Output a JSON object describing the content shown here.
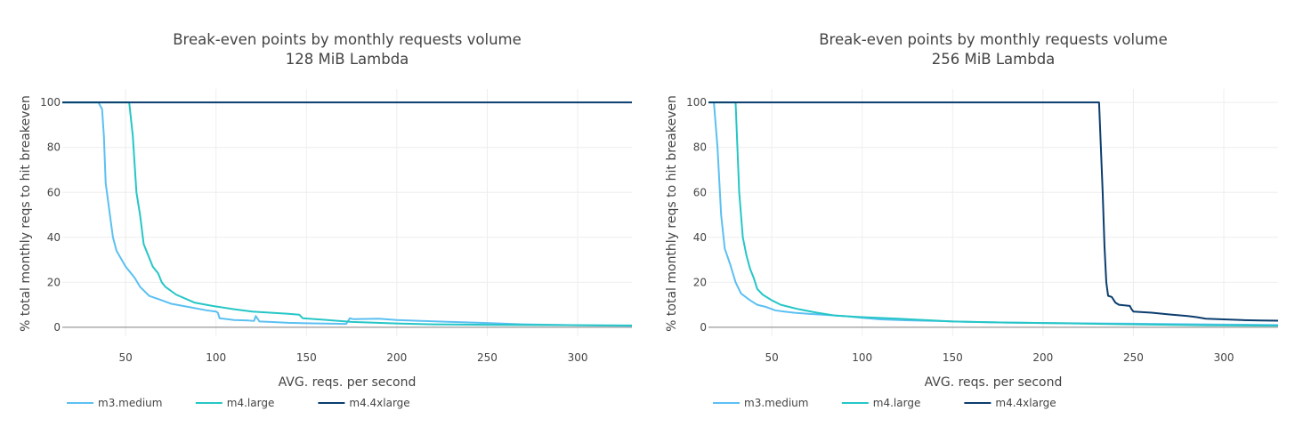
{
  "colors": {
    "m3_medium": "#5bc0f2",
    "m4_large": "#26c6c6",
    "m4_4xlarge": "#0b3d6e",
    "zero_line": "#999999"
  },
  "chart_data": [
    {
      "type": "line",
      "title": "Break-even points by monthly requests volume",
      "subtitle": "128 MiB Lambda",
      "xlabel": "AVG. reqs. per second",
      "ylabel": "% total monthly reqs to hit breakeven",
      "xlim": [
        15,
        330
      ],
      "ylim": [
        -4,
        106
      ],
      "x_ticks": [
        50,
        100,
        150,
        200,
        250,
        300
      ],
      "x_tick_labels": [
        "50",
        "100",
        "150",
        "200",
        "250",
        "300"
      ],
      "y_ticks": [
        0,
        20,
        40,
        60,
        80,
        100
      ],
      "y_tick_labels": [
        "0",
        "20",
        "40",
        "60",
        "80",
        "100"
      ],
      "grid": true,
      "legend_position": "bottom-left",
      "series": [
        {
          "name": "m3.medium",
          "color": "#5bc0f2",
          "points": [
            [
              15,
              100
            ],
            [
              35,
              100
            ],
            [
              37,
              97
            ],
            [
              38,
              85
            ],
            [
              39,
              64
            ],
            [
              41,
              52
            ],
            [
              43,
              40
            ],
            [
              45,
              34
            ],
            [
              50,
              27
            ],
            [
              55,
              22
            ],
            [
              58,
              18
            ],
            [
              63,
              14
            ],
            [
              70,
              12
            ],
            [
              75,
              10.5
            ],
            [
              85,
              9
            ],
            [
              95,
              7.5
            ],
            [
              100,
              7
            ],
            [
              101,
              6.5
            ],
            [
              102,
              4
            ],
            [
              110,
              3.2
            ],
            [
              118,
              3
            ],
            [
              121,
              2.8
            ],
            [
              122,
              5
            ],
            [
              124,
              2.6
            ],
            [
              130,
              2.4
            ],
            [
              140,
              2
            ],
            [
              150,
              1.8
            ],
            [
              172,
              1.5
            ],
            [
              174,
              4
            ],
            [
              176,
              3.6
            ],
            [
              190,
              3.8
            ],
            [
              200,
              3.2
            ],
            [
              210,
              2.9
            ],
            [
              230,
              2.4
            ],
            [
              250,
              1.9
            ],
            [
              270,
              1.3
            ],
            [
              300,
              0.9
            ],
            [
              330,
              0.6
            ]
          ]
        },
        {
          "name": "m4.large",
          "color": "#26c6c6",
          "points": [
            [
              15,
              100
            ],
            [
              52,
              100
            ],
            [
              54,
              85
            ],
            [
              56,
              60
            ],
            [
              58,
              50
            ],
            [
              60,
              37
            ],
            [
              63,
              31
            ],
            [
              65,
              27
            ],
            [
              68,
              24
            ],
            [
              70,
              20
            ],
            [
              72,
              18
            ],
            [
              78,
              14.5
            ],
            [
              88,
              11
            ],
            [
              98,
              9.5
            ],
            [
              110,
              8
            ],
            [
              120,
              7
            ],
            [
              140,
              6
            ],
            [
              146,
              5.6
            ],
            [
              148,
              4
            ],
            [
              160,
              3.3
            ],
            [
              175,
              2.4
            ],
            [
              200,
              1.7
            ],
            [
              220,
              1.3
            ],
            [
              250,
              1.1
            ],
            [
              280,
              1
            ],
            [
              330,
              0.8
            ]
          ]
        },
        {
          "name": "m4.4xlarge",
          "color": "#0b3d6e",
          "points": [
            [
              15,
              100
            ],
            [
              330,
              100
            ]
          ]
        }
      ]
    },
    {
      "type": "line",
      "title": "Break-even points by monthly requests volume",
      "subtitle": "256 MiB Lambda",
      "xlabel": "AVG. reqs. per second",
      "ylabel": "% total monthly reqs to hit breakeven",
      "xlim": [
        15,
        330
      ],
      "ylim": [
        -4,
        106
      ],
      "x_ticks": [
        50,
        100,
        150,
        200,
        250,
        300
      ],
      "x_tick_labels": [
        "50",
        "100",
        "150",
        "200",
        "250",
        "300"
      ],
      "y_ticks": [
        0,
        20,
        40,
        60,
        80,
        100
      ],
      "y_tick_labels": [
        "0",
        "20",
        "40",
        "60",
        "80",
        "100"
      ],
      "grid": true,
      "legend_position": "bottom-left",
      "series": [
        {
          "name": "m3.medium",
          "color": "#5bc0f2",
          "points": [
            [
              18,
              100
            ],
            [
              20,
              80
            ],
            [
              22,
              50
            ],
            [
              24,
              35
            ],
            [
              27,
              28
            ],
            [
              30,
              20
            ],
            [
              33,
              15
            ],
            [
              38,
              12
            ],
            [
              42,
              10
            ],
            [
              47,
              9
            ],
            [
              52,
              7.5
            ],
            [
              57,
              7
            ],
            [
              62,
              6.5
            ],
            [
              70,
              6
            ],
            [
              80,
              5.5
            ],
            [
              90,
              5
            ],
            [
              100,
              4.2
            ],
            [
              110,
              3.5
            ],
            [
              120,
              3.2
            ],
            [
              140,
              2.8
            ],
            [
              160,
              2.4
            ],
            [
              180,
              2.1
            ],
            [
              200,
              1.9
            ],
            [
              230,
              1.7
            ],
            [
              260,
              1.5
            ],
            [
              300,
              1.2
            ],
            [
              330,
              1
            ]
          ]
        },
        {
          "name": "m4.large",
          "color": "#26c6c6",
          "points": [
            [
              15,
              100
            ],
            [
              30,
              100
            ],
            [
              31,
              80
            ],
            [
              32,
              60
            ],
            [
              34,
              40
            ],
            [
              36,
              32
            ],
            [
              38,
              26
            ],
            [
              40,
              22
            ],
            [
              42,
              17
            ],
            [
              45,
              14.5
            ],
            [
              50,
              12
            ],
            [
              55,
              10
            ],
            [
              65,
              8
            ],
            [
              75,
              6.5
            ],
            [
              85,
              5.2
            ],
            [
              100,
              4.5
            ],
            [
              120,
              3.8
            ],
            [
              150,
              2.6
            ],
            [
              180,
              2.1
            ],
            [
              210,
              1.8
            ],
            [
              250,
              1.3
            ],
            [
              290,
              0.9
            ],
            [
              330,
              0.7
            ]
          ]
        },
        {
          "name": "m4.4xlarge",
          "color": "#0b3d6e",
          "points": [
            [
              15,
              100
            ],
            [
              231,
              100
            ],
            [
              232,
              80
            ],
            [
              233,
              60
            ],
            [
              234,
              36
            ],
            [
              235,
              20
            ],
            [
              236,
              14
            ],
            [
              238,
              13.5
            ],
            [
              240,
              11
            ],
            [
              242,
              10
            ],
            [
              248,
              9.5
            ],
            [
              249,
              8
            ],
            [
              250,
              7
            ],
            [
              260,
              6.5
            ],
            [
              270,
              5.7
            ],
            [
              280,
              5
            ],
            [
              285,
              4.5
            ],
            [
              290,
              3.8
            ],
            [
              300,
              3.5
            ],
            [
              310,
              3.2
            ],
            [
              320,
              3
            ],
            [
              330,
              2.9
            ]
          ]
        }
      ]
    }
  ]
}
